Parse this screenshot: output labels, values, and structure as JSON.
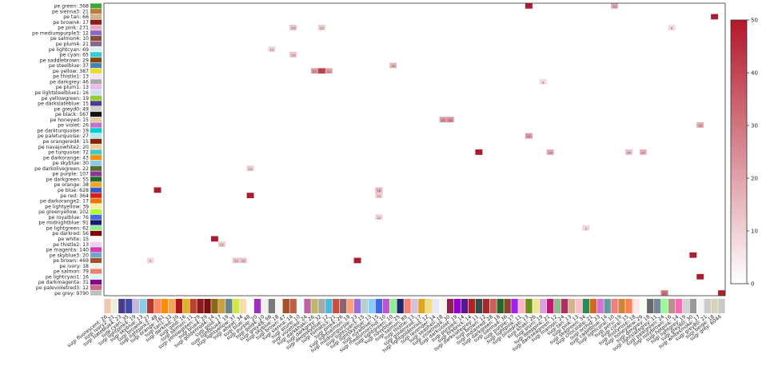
{
  "chart_data": {
    "type": "heatmap",
    "title": "",
    "rows": [
      {
        "label": "pe green: 368",
        "color": "#3fa535"
      },
      {
        "label": "pe sienna3: 21",
        "color": "#c07a3a"
      },
      {
        "label": "pe tan: 66",
        "color": "#d2b48c"
      },
      {
        "label": "pe brown4: 17",
        "color": "#8b1a1a"
      },
      {
        "label": "pe pink: 271",
        "color": "#f2a7b8"
      },
      {
        "label": "pe mediumpurple3: 12",
        "color": "#8968cd"
      },
      {
        "label": "pe salmon4: 10",
        "color": "#8b4c39"
      },
      {
        "label": "pe plum4: 21",
        "color": "#8b668b"
      },
      {
        "label": "pe lightcyan: 69",
        "color": "#d8f3f3"
      },
      {
        "label": "pe cyan: 65",
        "color": "#35c9d6"
      },
      {
        "label": "pe saddlebrown: 29",
        "color": "#8b4513"
      },
      {
        "label": "pe steelblue: 37",
        "color": "#4682b4"
      },
      {
        "label": "pe yellow: 387",
        "color": "#e8e020"
      },
      {
        "label": "pe thistle1: 13",
        "color": "#f3e1f3"
      },
      {
        "label": "pe darkgrey: 46",
        "color": "#a9a9a9"
      },
      {
        "label": "pe plum1: 13",
        "color": "#eebbee"
      },
      {
        "label": "pe lightsteelblue1: 16",
        "color": "#cae1ff"
      },
      {
        "label": "pe yellowgreen: 19",
        "color": "#9acd32"
      },
      {
        "label": "pe darkslateblue: 15",
        "color": "#483d8b"
      },
      {
        "label": "pe greyd0: 49",
        "color": "#d0d0d0"
      },
      {
        "label": "pe black: 567",
        "color": "#111111"
      },
      {
        "label": "pe honeyed: 15",
        "color": "#e3c9a0"
      },
      {
        "label": "pe violet: 26",
        "color": "#c86ec8"
      },
      {
        "label": "pe darkturquoise: 19",
        "color": "#00ced1"
      },
      {
        "label": "pe paleturquoise: 27",
        "color": "#afeeee"
      },
      {
        "label": "pe orangered4: 15",
        "color": "#8b2500"
      },
      {
        "label": "pe navajowhite2: 20",
        "color": "#eecfa1"
      },
      {
        "label": "pe turquoise: 72",
        "color": "#40c8c0"
      },
      {
        "label": "pe darkorange: 43",
        "color": "#ff8c00"
      },
      {
        "label": "pe skyblue: 30",
        "color": "#87ceeb"
      },
      {
        "label": "pe darkolivegreen: 22",
        "color": "#556b2f"
      },
      {
        "label": "pe purple: 107",
        "color": "#8e3596"
      },
      {
        "label": "pe darkgreen: 55",
        "color": "#1e6b2a"
      },
      {
        "label": "pe orange: 38",
        "color": "#f5a623"
      },
      {
        "label": "pe blue: 628",
        "color": "#2f5bd0"
      },
      {
        "label": "pe red: 364",
        "color": "#d62020"
      },
      {
        "label": "pe darkorange2: 17",
        "color": "#ee7600"
      },
      {
        "label": "pe lightyellow: 39",
        "color": "#f5f0a8"
      },
      {
        "label": "pe greenyellow: 102",
        "color": "#adff2f"
      },
      {
        "label": "pe royalblue: 76",
        "color": "#4169e1"
      },
      {
        "label": "pe midnightblue: 91",
        "color": "#191970"
      },
      {
        "label": "pe lightgreen: 62",
        "color": "#90ee90"
      },
      {
        "label": "pe darkred: 56",
        "color": "#8b0000"
      },
      {
        "label": "pe white: 15",
        "color": "#f7f7f7"
      },
      {
        "label": "pe thistle2: 13",
        "color": "#eed2ee"
      },
      {
        "label": "pe magenta: 140",
        "color": "#d63bb8"
      },
      {
        "label": "pe skyblue3: 20",
        "color": "#6ca6cd"
      },
      {
        "label": "pe brown: 469",
        "color": "#a0522d"
      },
      {
        "label": "pe ivory: 18",
        "color": "#f2f2e6"
      },
      {
        "label": "pe salmon: 79",
        "color": "#f0806a"
      },
      {
        "label": "pe lightcyan1: 16",
        "color": "#d9f5f5"
      },
      {
        "label": "pe darkmagenta: 31",
        "color": "#8b008b"
      },
      {
        "label": "pe palevioletred3: 12",
        "color": "#cd6889"
      },
      {
        "label": "pe grey: 9790",
        "color": "#bebebe"
      }
    ],
    "columns": [
      {
        "label": "sugi fluorescent: 26",
        "color": "#f0c8b0"
      },
      {
        "label": "sugi ivory2: 21",
        "color": "#eeeee0"
      },
      {
        "label": "sugi slateblue4: 23",
        "color": "#473c8b"
      },
      {
        "label": "sugi cyan: 35",
        "color": "#3f4aa8"
      },
      {
        "label": "sugi lightpink4: 19",
        "color": "#c7b7d8"
      },
      {
        "label": "sugi skyblue: 13",
        "color": "#87ceeb"
      },
      {
        "label": "sugi brown4: 27",
        "color": "#b03a2e"
      },
      {
        "label": "sugi lightpink2: 48",
        "color": "#ff8a65"
      },
      {
        "label": "sugi orange: 161",
        "color": "#ff8c00"
      },
      {
        "label": "sugi tan1: 33",
        "color": "#f5a45a"
      },
      {
        "label": "sugi darkred: 29",
        "color": "#b01515"
      },
      {
        "label": "sugi gold: 16",
        "color": "#e0b020"
      },
      {
        "label": "sugi salmon: 11",
        "color": "#c04030"
      },
      {
        "label": "sugi yellowgreen: 29",
        "color": "#8b1a1a"
      },
      {
        "label": "sugi blue4: 29",
        "color": "#7a1010"
      },
      {
        "label": "sugi goldenrod4: 14",
        "color": "#8b6914"
      },
      {
        "label": "sugi gold: 17",
        "color": "#c8a040"
      },
      {
        "label": "sugi lightblue4: 19",
        "color": "#68838b"
      },
      {
        "label": "sugi lightyellow: 37",
        "color": "#d4e840"
      },
      {
        "label": "sugi wheat: 34",
        "color": "#f0e0b0"
      },
      {
        "label": "sugi blue: 48",
        "color": "#ffffff"
      },
      {
        "label": "sugi purple: 20",
        "color": "#9b30c0"
      },
      {
        "label": "sugi gold4: 10",
        "color": "#f0f0f0"
      },
      {
        "label": "sugi grey48: 98",
        "color": "#7a7a7a"
      },
      {
        "label": "sugi skyblue: 18",
        "color": "#f5f5f5"
      },
      {
        "label": "sugi brown: 47",
        "color": "#a0522d"
      },
      {
        "label": "sugi sienna: 14",
        "color": "#c06040"
      },
      {
        "label": "sugi azure: 10",
        "color": "#f0ffff"
      },
      {
        "label": "sugi violetred: 24",
        "color": "#c060a0"
      },
      {
        "label": "sugi darkkhaki: 26",
        "color": "#bdb76b"
      },
      {
        "label": "sugi darkgrey: 32",
        "color": "#a9a9a9"
      },
      {
        "label": "sugi deepskyblue: 12",
        "color": "#4ab8d8"
      },
      {
        "label": "sugi tomato3: 21",
        "color": "#cd4f39"
      },
      {
        "label": "sugi pink4: 26",
        "color": "#8b636c"
      },
      {
        "label": "sugi lightsalmon: 18",
        "color": "#ffa07a"
      },
      {
        "label": "sugi mediumpurple: 23",
        "color": "#9370db"
      },
      {
        "label": "sugi lightcyan3: 15",
        "color": "#b4cdcd"
      },
      {
        "label": "sugi lightskyblue: 13",
        "color": "#87cefa"
      },
      {
        "label": "sugi royalblue: 15",
        "color": "#4169e1"
      },
      {
        "label": "sugi mediumorchid: 10",
        "color": "#ba55d3"
      },
      {
        "label": "sugi lightgreen: 10",
        "color": "#90ee90"
      },
      {
        "label": "sugi navyblue: 25",
        "color": "#202a70"
      },
      {
        "label": "sugi salmon: 89",
        "color": "#fa8072"
      },
      {
        "label": "sugi thistle: 13",
        "color": "#d8bfd8"
      },
      {
        "label": "sugi goldenrod: 17",
        "color": "#daa520"
      },
      {
        "label": "sugi lightgoldenrod: 12",
        "color": "#eedd82"
      },
      {
        "label": "sugi lavender: 14",
        "color": "#e6e6fa"
      },
      {
        "label": "sugi seashell: 18",
        "color": "#fff5ee"
      },
      {
        "label": "sugi violetred4: 30",
        "color": "#8b2252"
      },
      {
        "label": "sugi darkviolet: 19",
        "color": "#9400d3"
      },
      {
        "label": "sugi purple4: 14",
        "color": "#551a8b"
      },
      {
        "label": "sugi firebrick: 14",
        "color": "#b22222"
      },
      {
        "label": "sugi darkslategrey: 11",
        "color": "#2f4f4f"
      },
      {
        "label": "sugi brown: 12",
        "color": "#a52a2a"
      },
      {
        "label": "sugi indianred: 28",
        "color": "#cd5c5c"
      },
      {
        "label": "sugi darkgreen: 18",
        "color": "#1e6b2a"
      },
      {
        "label": "sugi sienna4: 36",
        "color": "#8b4726"
      },
      {
        "label": "sugi purple: 17",
        "color": "#a020f0"
      },
      {
        "label": "sugi lightpink: 11",
        "color": "#ffb6c1"
      },
      {
        "label": "sugi olivedrab: 13",
        "color": "#6b8e23"
      },
      {
        "label": "sugi khaki: 26",
        "color": "#f0e68c"
      },
      {
        "label": "sugi plum: 19",
        "color": "#dda0dd"
      },
      {
        "label": "sugi deeppink: 21",
        "color": "#c01870"
      },
      {
        "label": "sugi darkseagreen: 12",
        "color": "#8fbc8f"
      },
      {
        "label": "sugi maroon: 24",
        "color": "#b03060"
      },
      {
        "label": "sugi tan: 13",
        "color": "#d2b48c"
      },
      {
        "label": "sugi pink: 13",
        "color": "#ffc0cb"
      },
      {
        "label": "sugi seagreen: 34",
        "color": "#2e8b57"
      },
      {
        "label": "sugi chocolate: 21",
        "color": "#d2691e"
      },
      {
        "label": "sugi orchid: 33",
        "color": "#da70d6"
      },
      {
        "label": "sugi cadetblue: 14",
        "color": "#5f9ea0"
      },
      {
        "label": "sugi lightcoral: 10",
        "color": "#f08080"
      },
      {
        "label": "sugi peru: 19",
        "color": "#cd853f"
      },
      {
        "label": "sugi coral: 15",
        "color": "#ff7f50"
      },
      {
        "label": "sugi mistyrose: 18",
        "color": "#ffe4e1"
      },
      {
        "label": "sugi honeydew: 29",
        "color": "#f0fff0"
      },
      {
        "label": "sugi dimgrey: 18",
        "color": "#696969"
      },
      {
        "label": "sugi lightslategrey: 11",
        "color": "#778899"
      },
      {
        "label": "sugi palegreen: 24",
        "color": "#98fb98"
      },
      {
        "label": "sugi rosybrown: 16",
        "color": "#bc8f8f"
      },
      {
        "label": "sugi hotpink: 14",
        "color": "#ff69b4"
      },
      {
        "label": "sugi lightgrey: 19",
        "color": "#d3d3d3"
      },
      {
        "label": "sugi grey60: 30",
        "color": "#999999"
      },
      {
        "label": "sugi whitesmoke: 17",
        "color": "#f5f5f5"
      },
      {
        "label": "sugi grey80: 21",
        "color": "#cccccc"
      },
      {
        "label": "sugi beige: 18",
        "color": "#d8d0b8"
      },
      {
        "label": "sugi grey: 6044",
        "color": "#c8c8c8"
      }
    ],
    "hot_cells": [
      {
        "row": 0,
        "col": 59,
        "value": 50
      },
      {
        "row": 0,
        "col": 71,
        "value": 18
      },
      {
        "row": 2,
        "col": 85,
        "value": 50
      },
      {
        "row": 4,
        "col": 26,
        "value": 14
      },
      {
        "row": 4,
        "col": 30,
        "value": 12
      },
      {
        "row": 4,
        "col": 79,
        "value": 8
      },
      {
        "row": 8,
        "col": 23,
        "value": 10
      },
      {
        "row": 9,
        "col": 26,
        "value": 13
      },
      {
        "row": 11,
        "col": 40,
        "value": 16
      },
      {
        "row": 12,
        "col": 29,
        "value": 22
      },
      {
        "row": 12,
        "col": 30,
        "value": 41
      },
      {
        "row": 12,
        "col": 31,
        "value": 20
      },
      {
        "row": 14,
        "col": 61,
        "value": 8
      },
      {
        "row": 21,
        "col": 47,
        "value": 23
      },
      {
        "row": 21,
        "col": 48,
        "value": 24
      },
      {
        "row": 22,
        "col": 83,
        "value": 18
      },
      {
        "row": 24,
        "col": 59,
        "value": 22
      },
      {
        "row": 27,
        "col": 52,
        "value": 50
      },
      {
        "row": 27,
        "col": 62,
        "value": 19
      },
      {
        "row": 27,
        "col": 73,
        "value": 14
      },
      {
        "row": 27,
        "col": 75,
        "value": 17
      },
      {
        "row": 30,
        "col": 20,
        "value": 12
      },
      {
        "row": 34,
        "col": 7,
        "value": 50
      },
      {
        "row": 34,
        "col": 38,
        "value": 16
      },
      {
        "row": 35,
        "col": 20,
        "value": 50
      },
      {
        "row": 35,
        "col": 38,
        "value": 11
      },
      {
        "row": 39,
        "col": 38,
        "value": 10
      },
      {
        "row": 41,
        "col": 67,
        "value": 9
      },
      {
        "row": 43,
        "col": 15,
        "value": 50
      },
      {
        "row": 44,
        "col": 16,
        "value": 12
      },
      {
        "row": 46,
        "col": 82,
        "value": 50
      },
      {
        "row": 47,
        "col": 6,
        "value": 9
      },
      {
        "row": 47,
        "col": 18,
        "value": 13
      },
      {
        "row": 47,
        "col": 19,
        "value": 13
      },
      {
        "row": 47,
        "col": 35,
        "value": 50
      },
      {
        "row": 50,
        "col": 83,
        "value": 50
      },
      {
        "row": 53,
        "col": 78,
        "value": 30
      },
      {
        "row": 53,
        "col": 86,
        "value": 50
      }
    ],
    "colorbar": {
      "min": 0,
      "max": 50,
      "ticks": [
        0,
        10,
        20,
        30,
        40,
        50
      ],
      "low_color": "#ffffff",
      "high_color": "#b2182b"
    },
    "xlabel": "",
    "ylabel": ""
  }
}
